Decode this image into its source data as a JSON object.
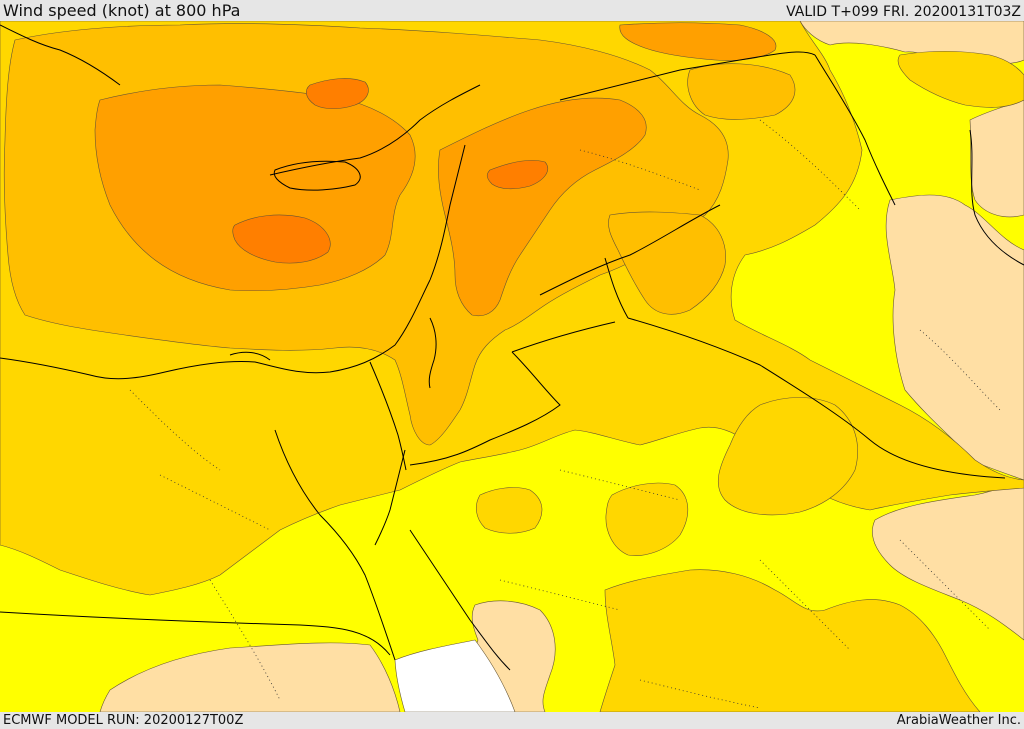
{
  "header": {
    "title": "Wind speed (knot) at 800 hPa",
    "valid": "VALID T+099 FRI. 20200131T03Z"
  },
  "footer": {
    "model_run": "ECMWF MODEL RUN: 20200127T00Z",
    "credit": "ArabiaWeather Inc."
  },
  "palette": {
    "calm": "#ffffff",
    "light": "#ffdfa4",
    "yellow": "#ffff00",
    "gold": "#ffd700",
    "amber": "#ffbf00",
    "orange": "#ffa000",
    "dark_orange": "#ff7f00",
    "contour": "#665533",
    "border": "#000000"
  }
}
